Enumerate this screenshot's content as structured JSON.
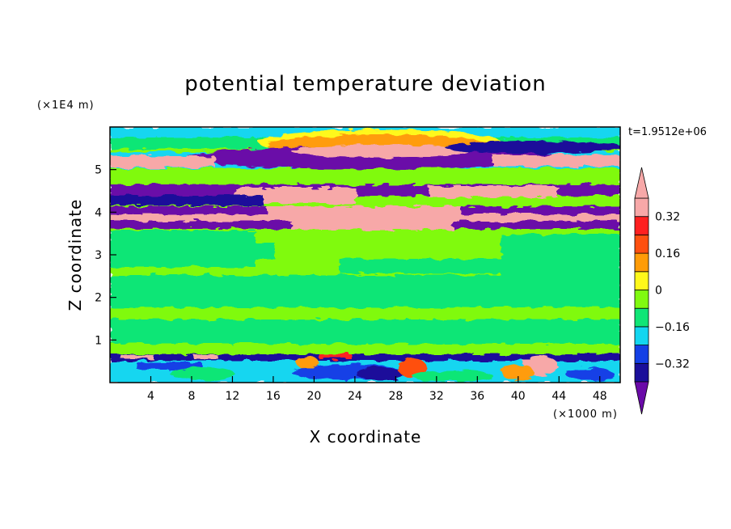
{
  "chart_data": {
    "type": "heatmap",
    "title": "potential temperature deviation",
    "xlabel": "X coordinate",
    "ylabel": "Z coordinate",
    "x_unit": "(×1000 m)",
    "y_unit": "(×1E4 m)",
    "annotation": "t=1.9512e+06",
    "xlim": [
      0,
      50
    ],
    "ylim": [
      0,
      6
    ],
    "xticks": [
      4,
      8,
      12,
      16,
      20,
      24,
      28,
      32,
      36,
      40,
      44,
      48
    ],
    "yticks": [
      1,
      2,
      3,
      4,
      5
    ],
    "colorbar": {
      "levels": [
        -0.4,
        -0.32,
        -0.24,
        -0.16,
        -0.08,
        0,
        0.08,
        0.16,
        0.24,
        0.32,
        0.4
      ],
      "labels": [
        "0.32",
        "0.16",
        "0",
        "−0.16",
        "−0.32"
      ],
      "label_values": [
        0.32,
        0.16,
        0,
        -0.16,
        -0.32
      ],
      "colors_low_to_high": [
        "#6a0aa8",
        "#1a0f9a",
        "#1440e6",
        "#13d6f0",
        "#10e676",
        "#80fa10",
        "#fff81a",
        "#ff9c08",
        "#ff5010",
        "#ff2020",
        "#f7a8a8"
      ],
      "over_color": "#f7a8a8",
      "under_color": "#6a0aa8"
    },
    "bands": [
      {
        "z": [
          5.7,
          6.0
        ],
        "dominant": "cyan"
      },
      {
        "z": [
          5.2,
          5.7
        ],
        "dominant": "purple",
        "feature": "pink lens centered x≈28"
      },
      {
        "z": [
          4.8,
          5.2
        ],
        "dominant": "pink / green"
      },
      {
        "z": [
          4.5,
          4.8
        ],
        "dominant": "green"
      },
      {
        "z": [
          4.1,
          4.5
        ],
        "dominant": "purple / pink"
      },
      {
        "z": [
          3.6,
          4.1
        ],
        "dominant": "purple / pink"
      },
      {
        "z": [
          0.6,
          3.6
        ],
        "dominant": "light green / green"
      },
      {
        "z": [
          0.0,
          0.6
        ],
        "dominant": "mixed turbulent"
      }
    ]
  }
}
